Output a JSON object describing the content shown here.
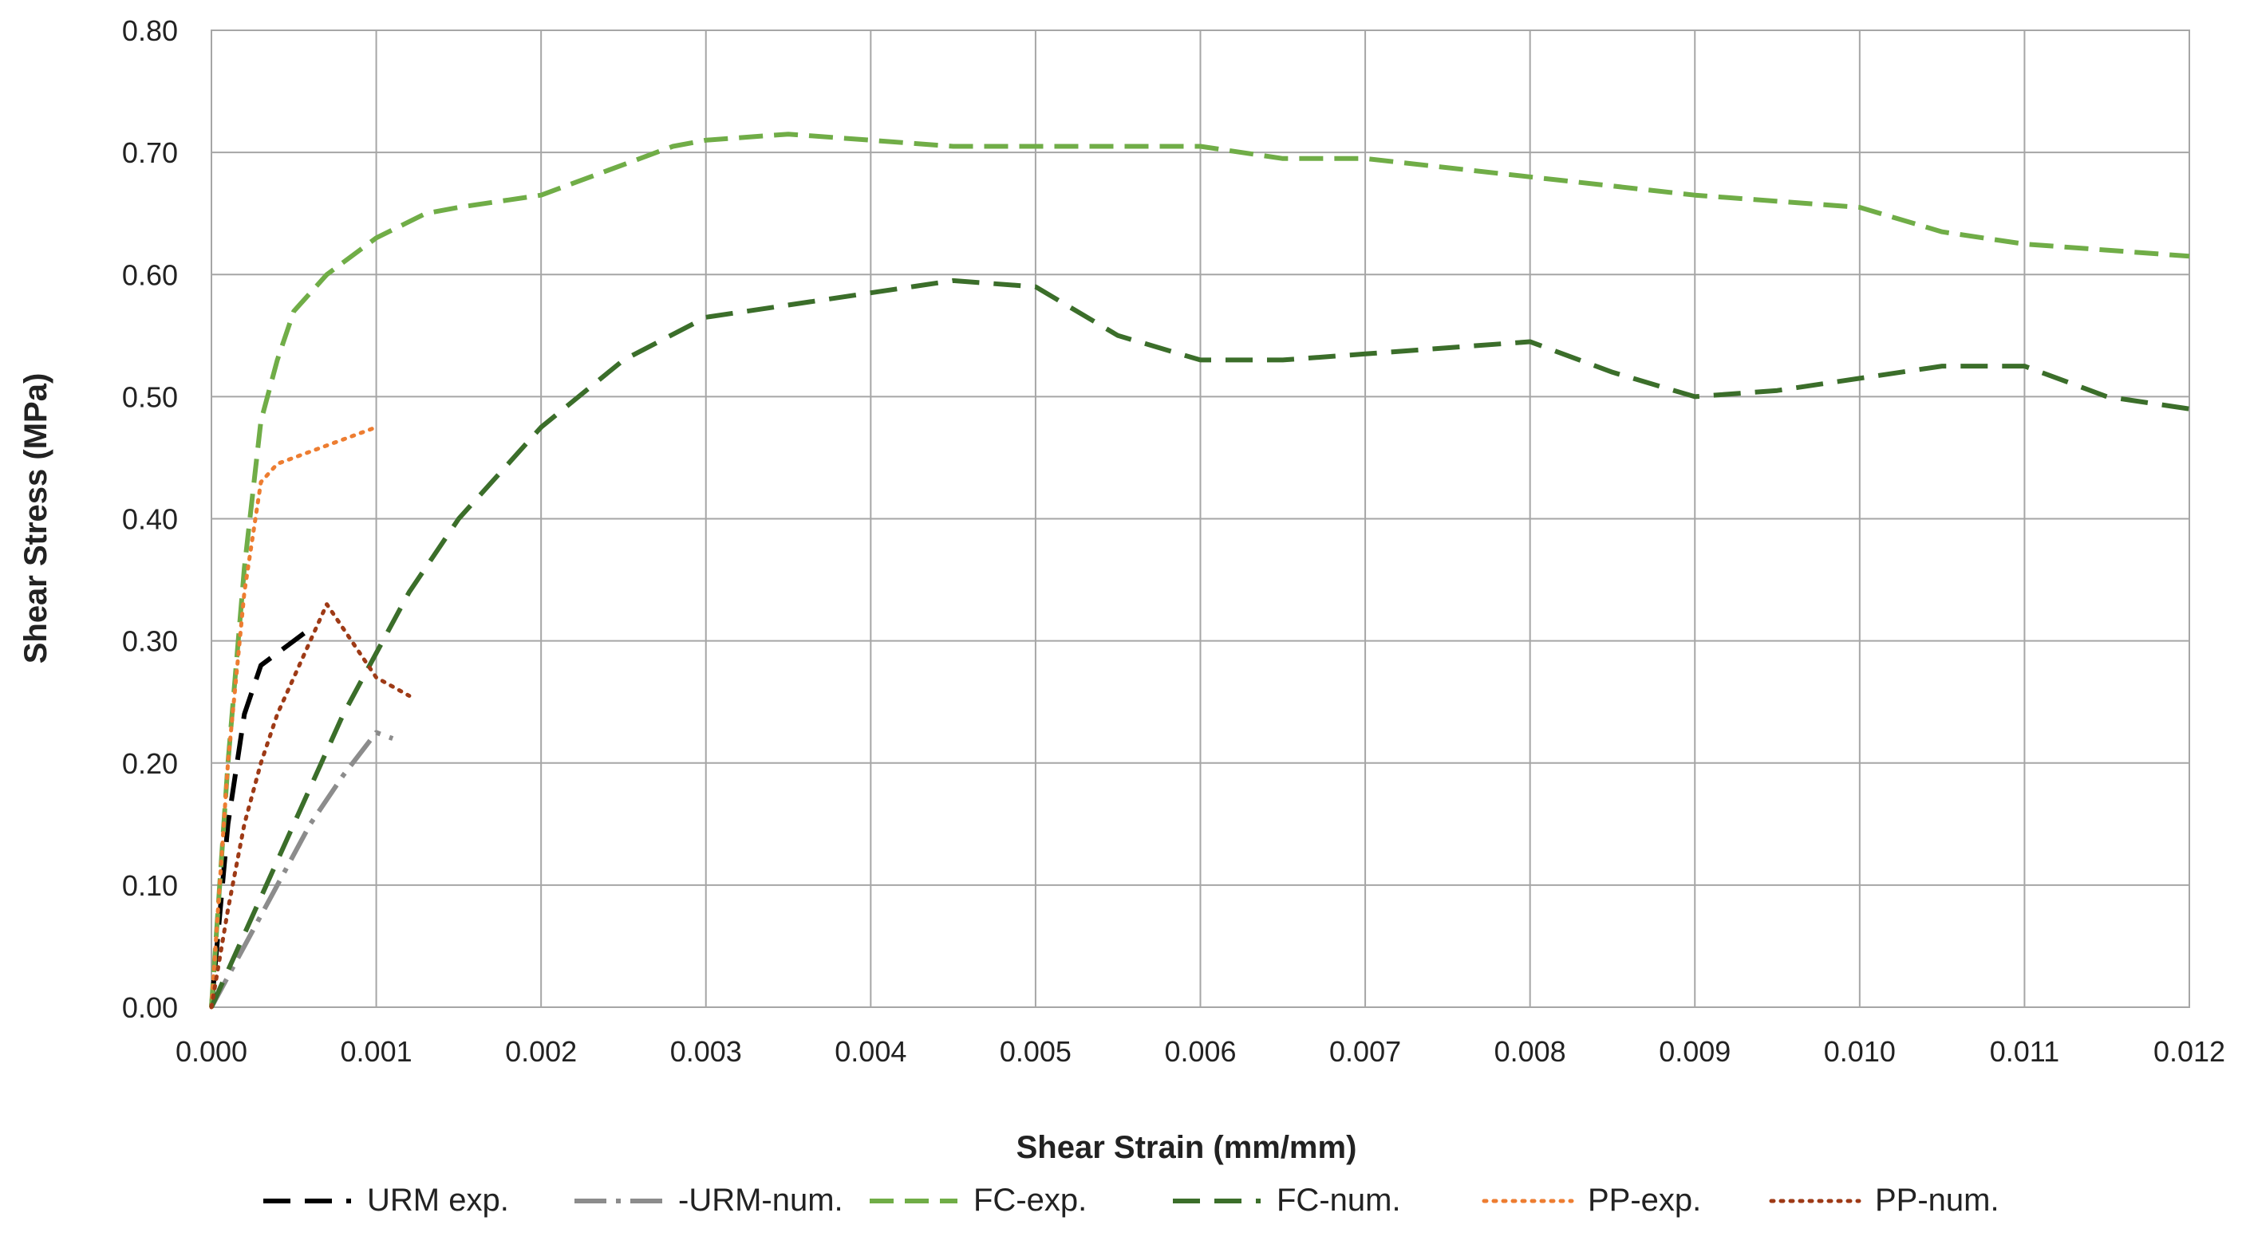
{
  "chart_data": {
    "type": "line",
    "title": "",
    "xlabel": "Shear Strain (mm/mm)",
    "ylabel": "Shear Stress (MPa)",
    "xlim": [
      0,
      0.012
    ],
    "ylim": [
      0,
      0.8
    ],
    "x_ticks": [
      "0.000",
      "0.001",
      "0.002",
      "0.003",
      "0.004",
      "0.005",
      "0.006",
      "0.007",
      "0.008",
      "0.009",
      "0.010",
      "0.011",
      "0.012"
    ],
    "y_ticks": [
      "0.00",
      "0.10",
      "0.20",
      "0.30",
      "0.40",
      "0.50",
      "0.60",
      "0.70",
      "0.80"
    ],
    "grid": true,
    "legend_position": "bottom",
    "series": [
      {
        "name": "URM exp.",
        "color": "#000000",
        "style": "long-dash",
        "x": [
          0,
          0.0001,
          0.0002,
          0.0003,
          0.0005,
          0.0006
        ],
        "y": [
          0,
          0.15,
          0.24,
          0.28,
          0.3,
          0.31
        ]
      },
      {
        "name": "-URM-num.",
        "color": "#8c8c8c",
        "style": "dash-dot",
        "x": [
          0,
          0.0002,
          0.0004,
          0.0006,
          0.0008,
          0.001,
          0.0011
        ],
        "y": [
          0,
          0.05,
          0.1,
          0.15,
          0.19,
          0.225,
          0.22
        ]
      },
      {
        "name": "FC-exp.",
        "color": "#70ad47",
        "style": "dash",
        "x": [
          0,
          0.0001,
          0.0002,
          0.0003,
          0.0004,
          0.0005,
          0.0007,
          0.001,
          0.0013,
          0.0015,
          0.002,
          0.0025,
          0.0028,
          0.003,
          0.0035,
          0.004,
          0.0045,
          0.005,
          0.0055,
          0.006,
          0.0065,
          0.007,
          0.008,
          0.009,
          0.01,
          0.0105,
          0.011,
          0.012
        ],
        "y": [
          0,
          0.2,
          0.36,
          0.48,
          0.53,
          0.57,
          0.6,
          0.63,
          0.65,
          0.655,
          0.665,
          0.69,
          0.705,
          0.71,
          0.715,
          0.71,
          0.705,
          0.705,
          0.705,
          0.705,
          0.695,
          0.695,
          0.68,
          0.665,
          0.655,
          0.635,
          0.625,
          0.615
        ]
      },
      {
        "name": "FC-num.",
        "color": "#3b6e2a",
        "style": "long-dash",
        "x": [
          0,
          0.0004,
          0.0008,
          0.0012,
          0.0015,
          0.002,
          0.0025,
          0.003,
          0.0035,
          0.004,
          0.0045,
          0.005,
          0.0055,
          0.006,
          0.0065,
          0.007,
          0.0075,
          0.008,
          0.0085,
          0.009,
          0.0095,
          0.01,
          0.0105,
          0.011,
          0.0115,
          0.012
        ],
        "y": [
          0,
          0.12,
          0.24,
          0.34,
          0.4,
          0.475,
          0.53,
          0.565,
          0.575,
          0.585,
          0.595,
          0.59,
          0.55,
          0.53,
          0.53,
          0.535,
          0.54,
          0.545,
          0.52,
          0.5,
          0.505,
          0.515,
          0.525,
          0.525,
          0.5,
          0.49
        ]
      },
      {
        "name": "PP-exp.",
        "color": "#ed7d31",
        "style": "dotted",
        "x": [
          0,
          5e-05,
          0.0001,
          0.0002,
          0.0003,
          0.0004,
          0.0006,
          0.0008,
          0.001
        ],
        "y": [
          0,
          0.1,
          0.2,
          0.34,
          0.43,
          0.445,
          0.455,
          0.465,
          0.475
        ]
      },
      {
        "name": "PP-num.",
        "color": "#9e3a16",
        "style": "dotted",
        "x": [
          0,
          0.0001,
          0.0002,
          0.0003,
          0.0004,
          0.0006,
          0.0007,
          0.0008,
          0.001,
          0.0012
        ],
        "y": [
          0,
          0.08,
          0.15,
          0.2,
          0.24,
          0.3,
          0.33,
          0.31,
          0.27,
          0.255
        ]
      }
    ]
  }
}
